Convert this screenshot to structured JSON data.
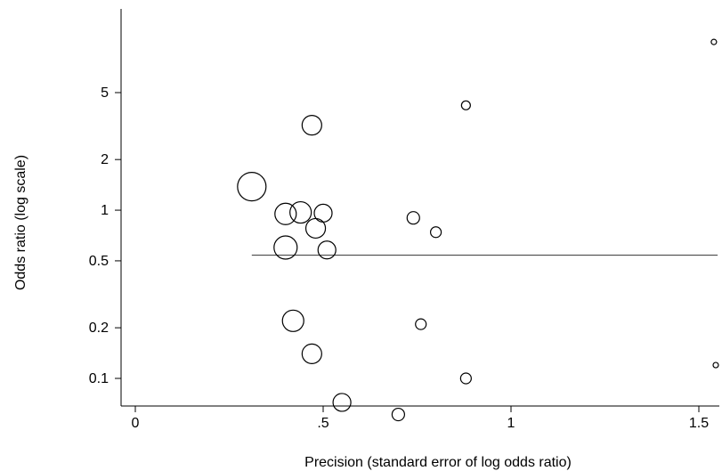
{
  "chart_data": {
    "type": "scatter",
    "xlabel": "Precision (standard error of log odds ratio)",
    "ylabel": "Odds ratio (log scale)",
    "xlim": [
      0,
      1.55
    ],
    "ylim": [
      0.05,
      11
    ],
    "y_scale": "log",
    "grid": false,
    "x_ticks": [
      {
        "value": 0,
        "label": "0"
      },
      {
        "value": 0.5,
        "label": ".5"
      },
      {
        "value": 1,
        "label": "1"
      },
      {
        "value": 1.5,
        "label": "1.5"
      }
    ],
    "y_ticks": [
      {
        "value": 0.1,
        "label": "0.1"
      },
      {
        "value": 0.2,
        "label": "0.2"
      },
      {
        "value": 0.5,
        "label": "0.5"
      },
      {
        "value": 1,
        "label": "1"
      },
      {
        "value": 2,
        "label": "2"
      },
      {
        "value": 5,
        "label": "5"
      }
    ],
    "reference_line": {
      "y": 0.54,
      "x_start": 0.31,
      "x_end": 1.55
    },
    "points": [
      {
        "x": 0.31,
        "y": 1.38,
        "weight": 16
      },
      {
        "x": 0.4,
        "y": 0.95,
        "weight": 12
      },
      {
        "x": 0.44,
        "y": 0.97,
        "weight": 12
      },
      {
        "x": 0.5,
        "y": 0.96,
        "weight": 10
      },
      {
        "x": 0.47,
        "y": 3.2,
        "weight": 11
      },
      {
        "x": 0.48,
        "y": 0.78,
        "weight": 11
      },
      {
        "x": 0.4,
        "y": 0.6,
        "weight": 13
      },
      {
        "x": 0.51,
        "y": 0.58,
        "weight": 10
      },
      {
        "x": 0.42,
        "y": 0.22,
        "weight": 12
      },
      {
        "x": 0.47,
        "y": 0.14,
        "weight": 11
      },
      {
        "x": 0.55,
        "y": 0.072,
        "weight": 10
      },
      {
        "x": 0.7,
        "y": 0.061,
        "weight": 7
      },
      {
        "x": 0.74,
        "y": 0.9,
        "weight": 7
      },
      {
        "x": 0.8,
        "y": 0.74,
        "weight": 6
      },
      {
        "x": 0.76,
        "y": 0.21,
        "weight": 6
      },
      {
        "x": 0.88,
        "y": 4.2,
        "weight": 5
      },
      {
        "x": 0.88,
        "y": 0.1,
        "weight": 6
      },
      {
        "x": 1.54,
        "y": 10.0,
        "weight": 3
      },
      {
        "x": 1.55,
        "y": 0.12,
        "weight": 3
      }
    ]
  }
}
